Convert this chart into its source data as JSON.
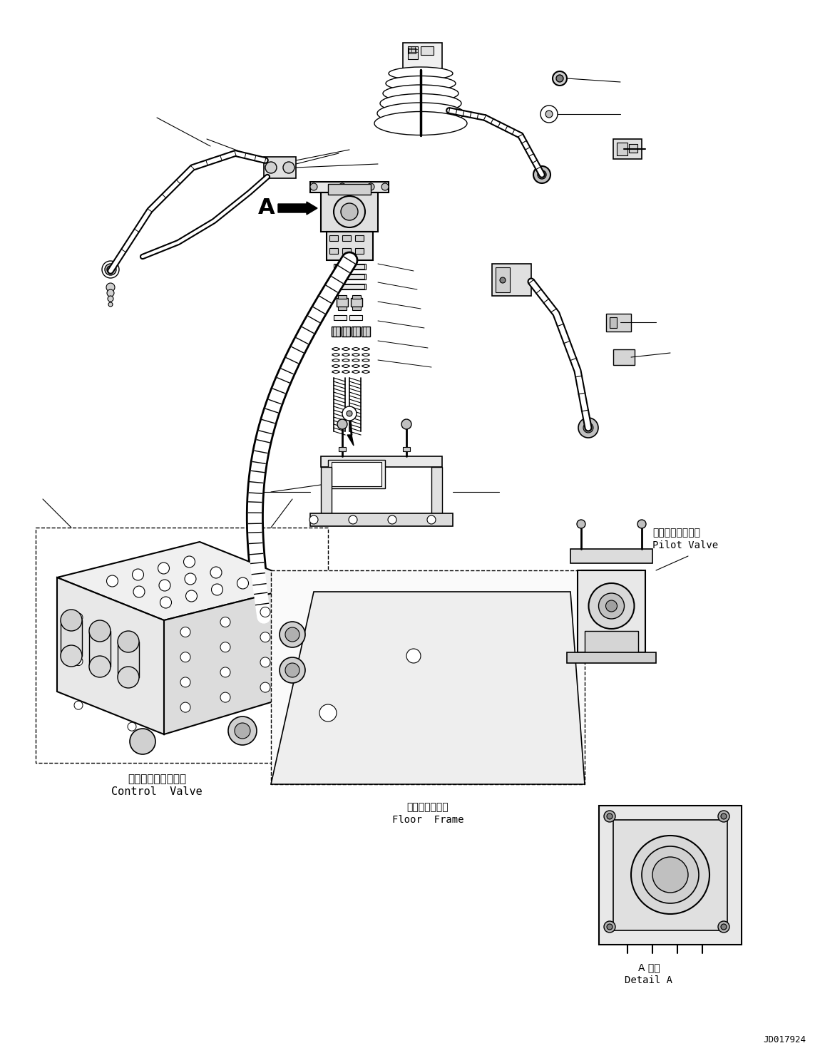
{
  "figsize": [
    11.57,
    14.91
  ],
  "dpi": 100,
  "bg_color": "#ffffff",
  "diagram_id": "JD017924",
  "label_cv_jp": "コントロールバルブ",
  "label_cv_en": "Control  Valve",
  "label_pv_jp": "パイロットバルブ",
  "label_pv_en": "Pilot Valve",
  "label_ff_jp": "フロアフレーム",
  "label_ff_en": "Floor  Frame",
  "label_da_jp": "A 詳細",
  "label_da_en": "Detail A",
  "label_A": "A",
  "label_id": "JD017924"
}
